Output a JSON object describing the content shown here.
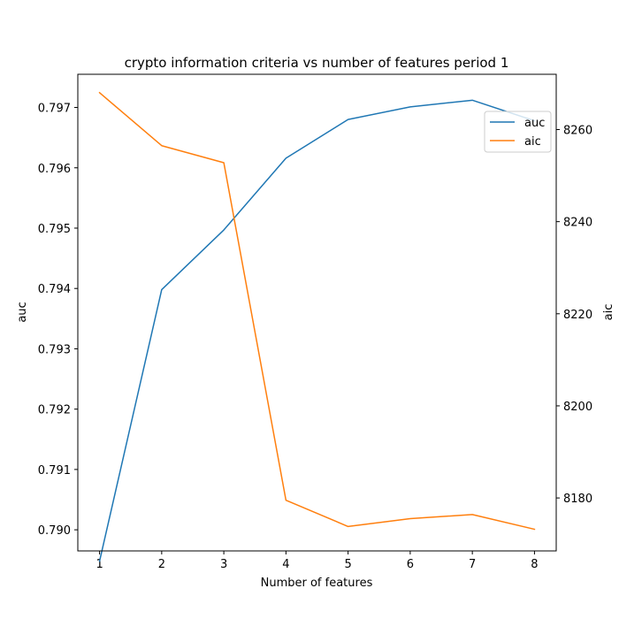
{
  "chart_data": {
    "type": "line",
    "title": "crypto information criteria vs number of features period 1",
    "xlabel": "Number of features",
    "ylabel_left": "auc",
    "ylabel_right": "aic",
    "x": [
      1,
      2,
      3,
      4,
      5,
      6,
      7,
      8
    ],
    "x_ticks": [
      "1",
      "2",
      "3",
      "4",
      "5",
      "6",
      "7",
      "8"
    ],
    "xlim": [
      0.65,
      8.35
    ],
    "ylim_left": [
      0.78965,
      0.79755
    ],
    "ylim_right": [
      8168.5,
      8272.0
    ],
    "y_ticks_left": [
      0.79,
      0.791,
      0.792,
      0.793,
      0.794,
      0.795,
      0.796,
      0.797
    ],
    "y_ticks_left_labels": [
      "0.790",
      "0.791",
      "0.792",
      "0.793",
      "0.794",
      "0.795",
      "0.796",
      "0.797"
    ],
    "y_ticks_right": [
      8180,
      8200,
      8220,
      8240,
      8260
    ],
    "y_ticks_right_labels": [
      "8180",
      "8200",
      "8220",
      "8240",
      "8260"
    ],
    "grid": false,
    "legend_position": "upper right",
    "series": [
      {
        "name": "auc",
        "axis": "left",
        "color": "#1f77b4",
        "values": [
          0.78948,
          0.79398,
          0.79497,
          0.79616,
          0.7968,
          0.79701,
          0.79712,
          0.79678
        ]
      },
      {
        "name": "aic",
        "axis": "right",
        "color": "#ff7f0e",
        "values": [
          8268.0,
          8256.5,
          8252.8,
          8179.5,
          8173.8,
          8175.5,
          8176.4,
          8173.2
        ]
      }
    ]
  }
}
